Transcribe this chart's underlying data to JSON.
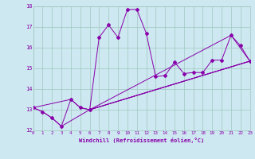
{
  "xlabel": "Windchill (Refroidissement éolien,°C)",
  "background_color": "#cde8f0",
  "grid_color": "#a0c8c0",
  "line_color": "#8800aa",
  "x_min": 0,
  "x_max": 23,
  "y_min": 12,
  "y_max": 18,
  "line1_x": [
    0,
    1,
    2,
    3,
    4,
    5,
    6,
    7,
    8,
    9,
    10,
    11,
    12,
    13,
    14,
    15,
    16,
    17,
    18,
    19,
    20,
    21,
    22,
    23
  ],
  "line1_y": [
    13.1,
    12.9,
    12.6,
    12.2,
    13.5,
    13.1,
    13.0,
    16.5,
    17.1,
    16.5,
    17.85,
    17.85,
    16.7,
    14.6,
    14.65,
    15.3,
    14.75,
    14.8,
    14.8,
    15.4,
    15.4,
    16.6,
    16.1,
    15.35
  ],
  "line2_x": [
    0,
    1,
    2,
    3,
    6,
    23
  ],
  "line2_y": [
    13.1,
    12.9,
    12.6,
    12.2,
    13.0,
    15.35
  ],
  "line3_x": [
    0,
    4,
    5,
    6,
    23
  ],
  "line3_y": [
    13.1,
    13.5,
    13.1,
    13.0,
    15.35
  ],
  "line4_x": [
    6,
    23
  ],
  "line4_y": [
    13.0,
    15.35
  ],
  "line5_x": [
    6,
    21,
    23
  ],
  "line5_y": [
    13.0,
    16.6,
    15.35
  ]
}
